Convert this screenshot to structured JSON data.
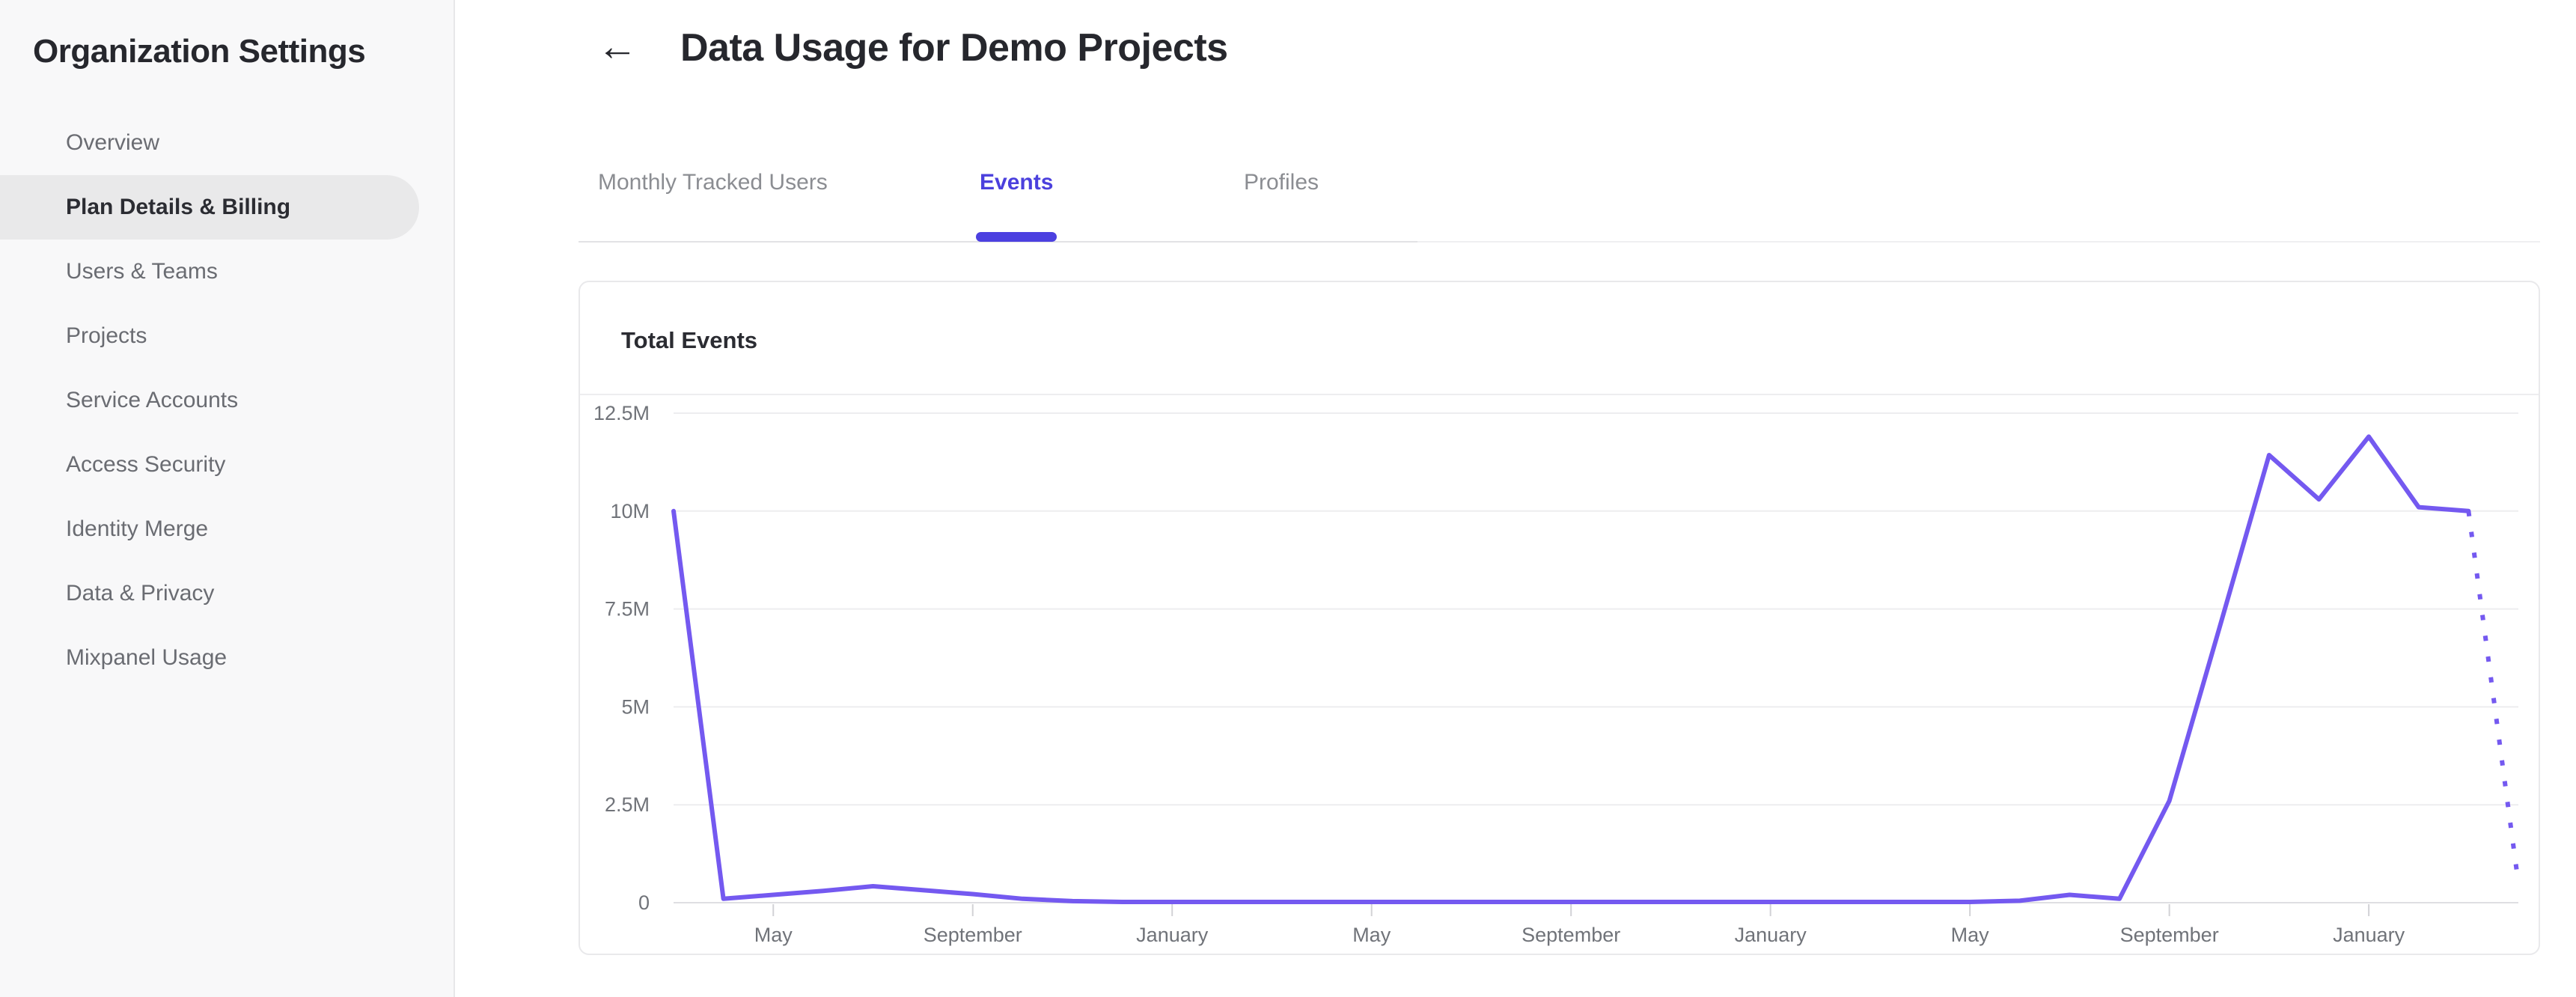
{
  "sidebar": {
    "title": "Organization Settings",
    "items": [
      {
        "label": "Overview",
        "active": false
      },
      {
        "label": "Plan Details & Billing",
        "active": true
      },
      {
        "label": "Users & Teams",
        "active": false
      },
      {
        "label": "Projects",
        "active": false
      },
      {
        "label": "Service Accounts",
        "active": false
      },
      {
        "label": "Access Security",
        "active": false
      },
      {
        "label": "Identity Merge",
        "active": false
      },
      {
        "label": "Data & Privacy",
        "active": false
      },
      {
        "label": "Mixpanel Usage",
        "active": false
      }
    ]
  },
  "header": {
    "back_icon": "←",
    "title": "Data Usage for Demo Projects"
  },
  "tabs": [
    {
      "label": "Monthly Tracked Users",
      "active": false
    },
    {
      "label": "Events",
      "active": true
    },
    {
      "label": "Profiles",
      "active": false
    }
  ],
  "card": {
    "title": "Total Events"
  },
  "chart_data": {
    "type": "line",
    "title": "Total Events",
    "ylabel": "",
    "xlabel": "",
    "y_max": 12500000,
    "y_ticks": [
      "12.5M",
      "10M",
      "7.5M",
      "5M",
      "2.5M",
      "0"
    ],
    "x_tick_labels": [
      "May",
      "September",
      "January",
      "May",
      "September",
      "January",
      "May",
      "September",
      "January"
    ],
    "x_tick_indices": [
      2,
      6,
      10,
      14,
      18,
      22,
      26,
      30,
      34
    ],
    "grid": true,
    "legend_position": "none",
    "series": [
      {
        "name": "Total Events",
        "last_point_projected_dotted": true,
        "points": [
          {
            "month": "March",
            "value": 10000000
          },
          {
            "month": "April",
            "value": 100000
          },
          {
            "month": "May",
            "value": 200000
          },
          {
            "month": "June",
            "value": 300000
          },
          {
            "month": "July",
            "value": 420000
          },
          {
            "month": "August",
            "value": 320000
          },
          {
            "month": "September",
            "value": 220000
          },
          {
            "month": "October",
            "value": 100000
          },
          {
            "month": "November",
            "value": 40000
          },
          {
            "month": "December",
            "value": 20000
          },
          {
            "month": "January",
            "value": 20000
          },
          {
            "month": "February",
            "value": 20000
          },
          {
            "month": "March",
            "value": 20000
          },
          {
            "month": "April",
            "value": 20000
          },
          {
            "month": "May",
            "value": 20000
          },
          {
            "month": "June",
            "value": 20000
          },
          {
            "month": "July",
            "value": 20000
          },
          {
            "month": "August",
            "value": 20000
          },
          {
            "month": "September",
            "value": 20000
          },
          {
            "month": "October",
            "value": 20000
          },
          {
            "month": "November",
            "value": 20000
          },
          {
            "month": "December",
            "value": 20000
          },
          {
            "month": "January",
            "value": 20000
          },
          {
            "month": "February",
            "value": 20000
          },
          {
            "month": "March",
            "value": 20000
          },
          {
            "month": "April",
            "value": 20000
          },
          {
            "month": "May",
            "value": 20000
          },
          {
            "month": "June",
            "value": 50000
          },
          {
            "month": "July",
            "value": 200000
          },
          {
            "month": "August",
            "value": 100000
          },
          {
            "month": "September",
            "value": 2600000
          },
          {
            "month": "October",
            "value": 7000000
          },
          {
            "month": "November",
            "value": 11430000
          },
          {
            "month": "December",
            "value": 10300000
          },
          {
            "month": "January",
            "value": 11900000
          },
          {
            "month": "February",
            "value": 10100000
          },
          {
            "month": "March",
            "value": 10000000
          },
          {
            "month": "April",
            "value": 500000
          }
        ]
      }
    ]
  },
  "colors": {
    "line": "#7459f0",
    "tab_active": "#4b40dd",
    "tab_underline": "#4c40e0",
    "gridline": "#ededef",
    "baseline": "#dfdfe2",
    "tick": "#d2d2d6",
    "axis_text": "#707379"
  }
}
